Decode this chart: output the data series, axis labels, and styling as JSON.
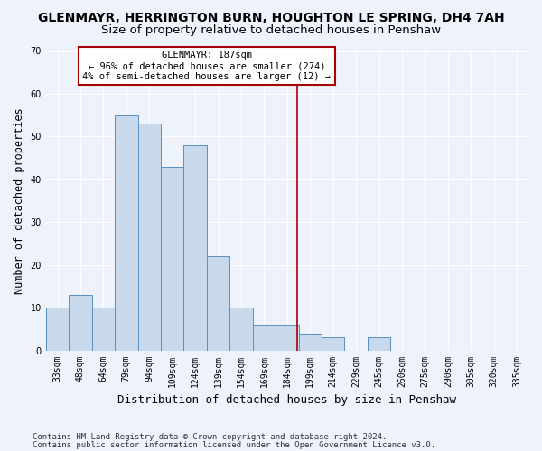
{
  "title": "GLENMAYR, HERRINGTON BURN, HOUGHTON LE SPRING, DH4 7AH",
  "subtitle": "Size of property relative to detached houses in Penshaw",
  "xlabel": "Distribution of detached houses by size in Penshaw",
  "ylabel": "Number of detached properties",
  "categories": [
    "33sqm",
    "48sqm",
    "64sqm",
    "79sqm",
    "94sqm",
    "109sqm",
    "124sqm",
    "139sqm",
    "154sqm",
    "169sqm",
    "184sqm",
    "199sqm",
    "214sqm",
    "229sqm",
    "245sqm",
    "260sqm",
    "275sqm",
    "290sqm",
    "305sqm",
    "320sqm",
    "335sqm"
  ],
  "values": [
    10,
    13,
    10,
    55,
    53,
    43,
    48,
    22,
    10,
    6,
    6,
    4,
    3,
    0,
    3,
    0,
    0,
    0,
    0,
    0,
    0
  ],
  "bar_color": "#c9d9ec",
  "bar_edge_color": "#5a90c0",
  "vline_x": 10.45,
  "vline_color": "#aa0000",
  "annotation_text": "GLENMAYR: 187sqm\n← 96% of detached houses are smaller (274)\n4% of semi-detached houses are larger (12) →",
  "annotation_box_color": "#ffffff",
  "annotation_box_edge_color": "#aa0000",
  "ylim": [
    0,
    70
  ],
  "yticks": [
    0,
    10,
    20,
    30,
    40,
    50,
    60,
    70
  ],
  "footer_line1": "Contains HM Land Registry data © Crown copyright and database right 2024.",
  "footer_line2": "Contains public sector information licensed under the Open Government Licence v3.0.",
  "bg_color": "#eef2fa",
  "grid_color": "#ffffff",
  "title_fontsize": 10,
  "subtitle_fontsize": 9.5,
  "tick_fontsize": 7,
  "footer_fontsize": 6.5,
  "ylabel_fontsize": 8.5,
  "xlabel_fontsize": 9
}
